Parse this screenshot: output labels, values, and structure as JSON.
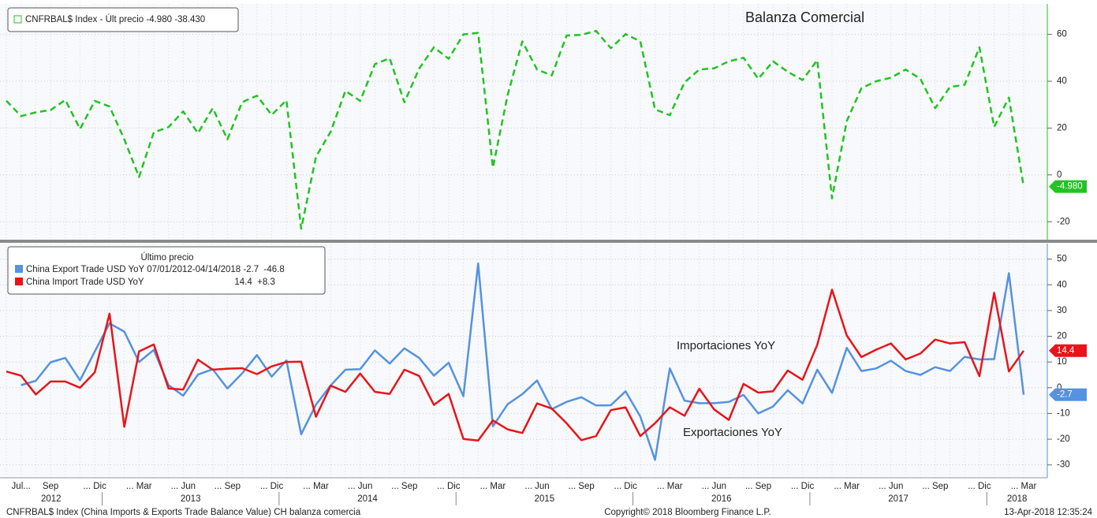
{
  "chart_data": [
    {
      "type": "line",
      "legend": "CNFRBAL$ Index - Últ precio -4.980 -38.430",
      "annotation": "Balanza Comercial",
      "ylim": [
        -28,
        73
      ],
      "yticks": [
        -20,
        0,
        20,
        40,
        60
      ],
      "grid": true,
      "series": [
        {
          "name": "CNFRBAL$ Index",
          "color": "#22c322",
          "line_style": "dashed",
          "values": [
            31.7,
            25.1,
            26.7,
            27.7,
            32.0,
            19.6,
            31.6,
            29.2,
            15.2,
            -0.9,
            18.2,
            20.4,
            27.1,
            17.8,
            28.5,
            15.2,
            31.1,
            33.8,
            25.6,
            31.9,
            -23.0,
            7.7,
            18.5,
            35.9,
            31.6,
            47.3,
            49.8,
            31.0,
            45.4,
            54.5,
            49.6,
            60.0,
            60.6,
            3.1,
            34.1,
            57.0,
            45.0,
            42.5,
            59.5,
            59.8,
            61.5,
            54.1,
            60.1,
            57.0,
            28.0,
            25.5,
            39.5,
            45.0,
            45.5,
            48.5,
            50.0,
            41.0,
            48.5,
            44.0,
            40.5,
            49.0,
            -10.0,
            23.0,
            37.0,
            40.0,
            41.5,
            45.0,
            41.0,
            28.5,
            37.5,
            38.5,
            54.5,
            20.5,
            33.0,
            -4.98
          ],
          "value_labels": [
            null,
            null,
            null,
            null,
            null,
            null,
            null,
            null,
            null,
            null,
            null,
            null,
            null,
            null,
            null,
            null,
            null,
            null,
            null,
            null,
            null,
            null,
            null,
            null,
            null,
            null,
            null,
            null,
            null,
            null,
            null,
            null,
            null,
            null,
            null,
            null,
            null,
            null,
            null,
            null,
            null,
            null,
            null,
            null,
            null,
            null,
            null,
            null,
            null,
            null,
            null,
            null,
            null,
            null,
            null,
            null,
            null,
            null,
            null,
            null,
            null,
            null,
            null,
            null,
            null,
            null,
            null,
            null,
            null,
            "-4.980"
          ]
        }
      ]
    },
    {
      "type": "line",
      "legend_title": "Último precio",
      "annotations": [
        "Importaciones YoY",
        "Exportaciones YoY"
      ],
      "ylim": [
        -35,
        56
      ],
      "yticks": [
        -30,
        -20,
        -10,
        0,
        10,
        20,
        30,
        40,
        50
      ],
      "grid": true,
      "categories": [
        null,
        "Jul...",
        null,
        "Sep",
        null,
        null,
        "... Dic",
        null,
        null,
        "... Mar",
        null,
        null,
        "... Jun",
        null,
        null,
        "... Sep",
        null,
        null,
        "... Dic",
        null,
        null,
        "... Mar",
        null,
        null,
        "... Jun",
        null,
        null,
        "... Sep",
        null,
        null,
        "... Dic",
        null,
        null,
        "... Mar",
        null,
        null,
        "... Jun",
        null,
        null,
        "... Sep",
        null,
        null,
        "... Dic",
        null,
        null,
        "... Mar",
        null,
        null,
        "... Jun",
        null,
        null,
        "... Sep",
        null,
        null,
        "... Dic",
        null,
        null,
        "... Mar",
        null,
        null,
        "... Jun",
        null,
        null,
        "... Sep",
        null,
        null,
        "... Dic",
        null,
        null,
        "... Mar"
      ],
      "years": [
        "2012",
        "2013",
        "2014",
        "2015",
        "2016",
        "2017",
        "2018"
      ],
      "series": [
        {
          "name": "China Export Trade USD YoY 07/01/2012-04/14/2018 -2.7  -46.8",
          "color": "#5592e0",
          "values": [
            null,
            1.0,
            2.7,
            9.9,
            11.6,
            2.9,
            14.1,
            25.0,
            21.8,
            10.0,
            14.7,
            1.0,
            -3.1,
            5.1,
            7.2,
            -0.3,
            5.6,
            12.7,
            4.3,
            10.6,
            -18.1,
            -6.6,
            0.9,
            7.0,
            7.2,
            14.5,
            9.4,
            15.3,
            11.6,
            4.7,
            9.7,
            -3.3,
            48.3,
            -15.0,
            -6.4,
            -2.5,
            2.8,
            -8.3,
            -5.5,
            -3.7,
            -6.9,
            -6.8,
            -1.4,
            -11.2,
            -28.0,
            7.5,
            -5.0,
            -6.0,
            -6.0,
            -5.5,
            -2.8,
            -10.0,
            -7.3,
            -1.0,
            -6.1,
            7.0,
            -2.0,
            15.5,
            6.5,
            7.5,
            10.5,
            6.5,
            5.0,
            8.0,
            6.5,
            12.0,
            11.0,
            11.1,
            44.5,
            -2.7
          ]
        },
        {
          "name": "China Import Trade USD YoY                                    14.4  +8.3",
          "color": "#e8141a",
          "values": [
            6.3,
            4.7,
            -2.6,
            2.4,
            2.4,
            0.0,
            6.0,
            28.8,
            -15.2,
            14.1,
            16.8,
            -0.3,
            -0.7,
            10.9,
            7.0,
            7.4,
            7.6,
            5.3,
            8.3,
            10.0,
            10.1,
            -11.3,
            0.8,
            -1.6,
            5.5,
            -1.6,
            -2.4,
            7.0,
            4.6,
            -6.7,
            -2.4,
            -19.9,
            -20.5,
            -12.7,
            -16.2,
            -17.6,
            -6.1,
            -8.1,
            -13.8,
            -20.4,
            -18.8,
            -8.7,
            -7.6,
            -18.8,
            -13.8,
            -7.6,
            -10.9,
            -0.4,
            -8.4,
            -12.5,
            1.5,
            -1.9,
            -1.4,
            6.7,
            3.1,
            16.7,
            38.1,
            20.3,
            11.9,
            14.8,
            17.2,
            11.0,
            13.3,
            18.7,
            17.2,
            17.7,
            4.5,
            36.9,
            6.3,
            14.4
          ]
        }
      ]
    }
  ],
  "footer": {
    "left": "CNFRBAL$ Index (China Imports & Exports Trade Balance Value) CH balanza comercia",
    "center": "Copyright© 2018 Bloomberg Finance L.P.",
    "right": "13-Apr-2018 12:35:24"
  }
}
